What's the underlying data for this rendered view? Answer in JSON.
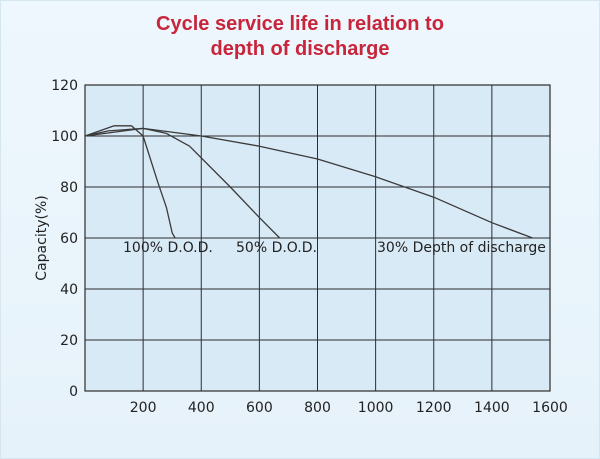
{
  "chart_data": {
    "type": "line",
    "title_lines": [
      "Cycle service life in relation to",
      "depth of discharge"
    ],
    "xlabel": "",
    "ylabel": "Capacity(%)",
    "xlim": [
      0,
      1600
    ],
    "ylim": [
      0,
      120
    ],
    "x_ticks": [
      200,
      400,
      600,
      800,
      1000,
      1200,
      1400,
      1600
    ],
    "y_ticks": [
      0,
      20,
      40,
      60,
      80,
      100,
      120
    ],
    "grid": true,
    "series": [
      {
        "name": "100% D.O.D.",
        "points": [
          [
            0,
            100
          ],
          [
            100,
            104
          ],
          [
            160,
            104
          ],
          [
            200,
            100
          ],
          [
            250,
            82
          ],
          [
            280,
            72
          ],
          [
            300,
            62
          ],
          [
            310,
            60
          ]
        ]
      },
      {
        "name": "50% D.O.D.",
        "points": [
          [
            0,
            100
          ],
          [
            80,
            102
          ],
          [
            200,
            103
          ],
          [
            280,
            101
          ],
          [
            360,
            96
          ],
          [
            500,
            80
          ],
          [
            600,
            68
          ],
          [
            670,
            60
          ]
        ]
      },
      {
        "name": "30% Depth of discharge",
        "points": [
          [
            0,
            100
          ],
          [
            200,
            103
          ],
          [
            400,
            100
          ],
          [
            600,
            96
          ],
          [
            800,
            91
          ],
          [
            1000,
            84
          ],
          [
            1200,
            76
          ],
          [
            1400,
            66
          ],
          [
            1540,
            60
          ]
        ]
      }
    ],
    "colors": {
      "line": "#3a3a3a",
      "grid": "#2c2c2c",
      "plot_bg": "#d9eaf7",
      "title": "#c8253b"
    }
  }
}
